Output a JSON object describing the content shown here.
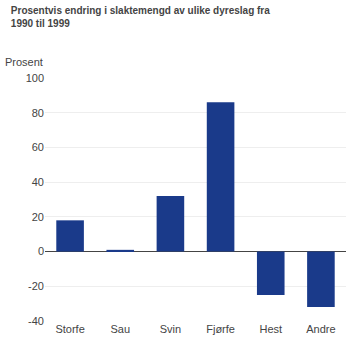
{
  "chart_data": {
    "type": "bar",
    "title": "Prosentvis endring i slaktemengd av ulike dyreslag fra\n1990 til 1999",
    "ylabel": "Prosent",
    "categories": [
      "Storfe",
      "Sau",
      "Svin",
      "Fjørfe",
      "Hest",
      "Andre"
    ],
    "values": [
      18,
      1,
      32,
      86,
      -25,
      -32
    ],
    "color": "#1a3a8a",
    "ylim": [
      -40,
      100
    ],
    "yticks": [
      -40,
      -20,
      0,
      20,
      40,
      60,
      80,
      100
    ],
    "grid": true
  }
}
